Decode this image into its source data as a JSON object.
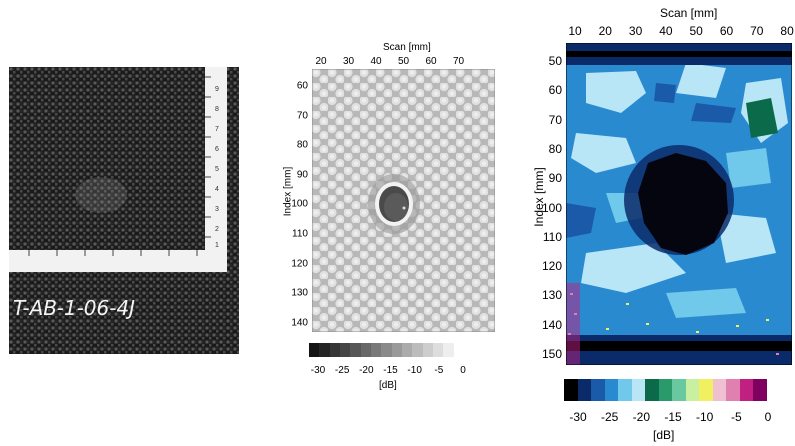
{
  "photo": {
    "specimen_label": "T-AB-1-06-4J",
    "ruler_numbers": [
      "1",
      "2",
      "3",
      "4",
      "5",
      "6",
      "7",
      "8",
      "9"
    ]
  },
  "gray_scan": {
    "x_title": "Scan [mm]",
    "y_title": "Index [mm]",
    "x_ticks": [
      "20",
      "30",
      "40",
      "50",
      "60",
      "70"
    ],
    "y_ticks": [
      "60",
      "70",
      "80",
      "90",
      "100",
      "110",
      "120",
      "130",
      "140"
    ],
    "colorbar_ticks": [
      "-30",
      "-25",
      "-20",
      "-15",
      "-10",
      "-5",
      "0"
    ],
    "colorbar_unit": "[dB]"
  },
  "color_scan": {
    "x_title": "Scan [mm]",
    "y_title": "Index [mm]",
    "x_ticks": [
      "10",
      "20",
      "30",
      "40",
      "50",
      "60",
      "70",
      "80"
    ],
    "y_ticks": [
      "50",
      "60",
      "70",
      "80",
      "90",
      "100",
      "110",
      "120",
      "130",
      "140",
      "150"
    ],
    "colorbar_ticks": [
      "-30",
      "-25",
      "-20",
      "-15",
      "-10",
      "-5",
      "0"
    ],
    "colorbar_unit": "[dB]",
    "colorbar_colors": [
      "#000000",
      "#0a2a6a",
      "#1a5aa8",
      "#2a8ad0",
      "#70c8ea",
      "#b8e6f6",
      "#0a6a4a",
      "#2a9a6a",
      "#6ac8a0",
      "#c8f0a0",
      "#f0f060",
      "#f0c0d0",
      "#e080b0",
      "#c02080",
      "#800060"
    ]
  }
}
